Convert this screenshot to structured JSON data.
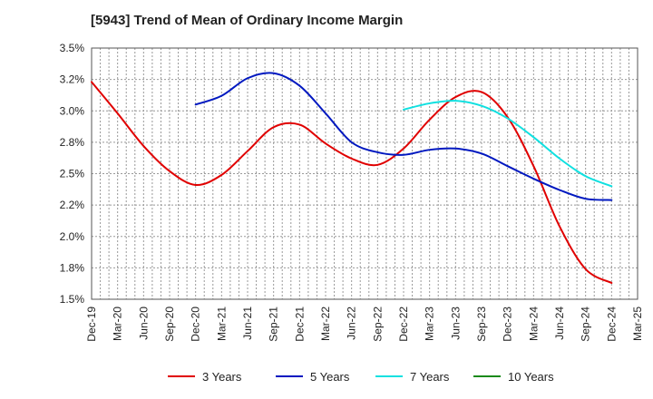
{
  "chart_data": {
    "type": "line",
    "title": "[5943]  Trend of Mean of Ordinary Income Margin",
    "xlabel": "",
    "ylabel": "",
    "x_ticks": [
      "Dec-19",
      "Mar-20",
      "Jun-20",
      "Sep-20",
      "Dec-20",
      "Mar-21",
      "Jun-21",
      "Sep-21",
      "Dec-21",
      "Mar-22",
      "Jun-22",
      "Sep-22",
      "Dec-22",
      "Mar-23",
      "Jun-23",
      "Sep-23",
      "Dec-23",
      "Mar-24",
      "Jun-24",
      "Sep-24",
      "Dec-24",
      "Mar-25"
    ],
    "y_ticks": [
      "1.5%",
      "1.8%",
      "2.0%",
      "2.2%",
      "2.5%",
      "2.8%",
      "3.0%",
      "3.2%",
      "3.5%"
    ],
    "ylim": [
      1.5,
      3.5
    ],
    "grid": true,
    "legend_position": "bottom",
    "series": [
      {
        "name": "3 Years",
        "color": "#e00000",
        "x": [
          "Dec-19",
          "Mar-20",
          "Jun-20",
          "Sep-20",
          "Dec-20",
          "Mar-21",
          "Jun-21",
          "Sep-21",
          "Dec-21",
          "Mar-22",
          "Jun-22",
          "Sep-22",
          "Dec-22",
          "Mar-23",
          "Jun-23",
          "Sep-23",
          "Dec-23",
          "Mar-24",
          "Jun-24",
          "Sep-24",
          "Dec-24"
        ],
        "values": [
          3.23,
          2.98,
          2.72,
          2.52,
          2.41,
          2.49,
          2.68,
          2.87,
          2.89,
          2.74,
          2.62,
          2.57,
          2.7,
          2.93,
          3.11,
          3.15,
          2.95,
          2.56,
          2.08,
          1.74,
          1.63
        ]
      },
      {
        "name": "5 Years",
        "color": "#0018c0",
        "x": [
          "Dec-20",
          "Mar-21",
          "Jun-21",
          "Sep-21",
          "Dec-21",
          "Mar-22",
          "Jun-22",
          "Sep-22",
          "Dec-22",
          "Mar-23",
          "Jun-23",
          "Sep-23",
          "Dec-23",
          "Mar-24",
          "Jun-24",
          "Sep-24",
          "Dec-24"
        ],
        "values": [
          3.05,
          3.12,
          3.26,
          3.3,
          3.2,
          2.98,
          2.75,
          2.67,
          2.65,
          2.69,
          2.7,
          2.66,
          2.56,
          2.46,
          2.37,
          2.3,
          2.29
        ]
      },
      {
        "name": "7 Years",
        "color": "#10e0e0",
        "x": [
          "Dec-22",
          "Mar-23",
          "Jun-23",
          "Sep-23",
          "Dec-23",
          "Mar-24",
          "Jun-24",
          "Sep-24",
          "Dec-24"
        ],
        "values": [
          3.01,
          3.06,
          3.08,
          3.04,
          2.94,
          2.79,
          2.62,
          2.48,
          2.4
        ]
      },
      {
        "name": "10 Years",
        "color": "#1a8a1a",
        "x": [],
        "values": []
      }
    ]
  }
}
